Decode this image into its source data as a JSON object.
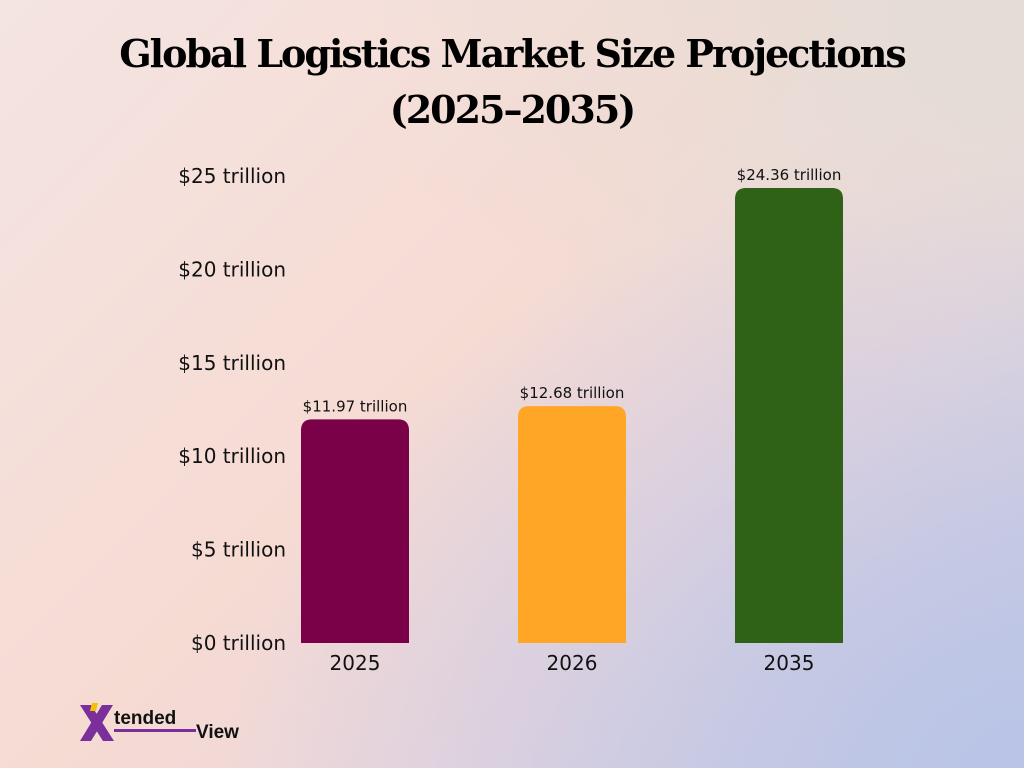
{
  "title_line1": "Global Logistics Market Size Projections",
  "title_line2": "(2025–2035)",
  "logo": {
    "letter": "X",
    "text_part1": "tended",
    "text_part2": "View",
    "mark_colors": [
      "#7a2f9a",
      "#f2c200"
    ]
  },
  "chart_data": {
    "type": "bar",
    "title": "Global Logistics Market Size Projections (2025–2035)",
    "categories": [
      "2025",
      "2026",
      "2035"
    ],
    "values": [
      11.97,
      12.68,
      24.36
    ],
    "data_labels": [
      "$11.97 trillion",
      "$12.68 trillion",
      "$24.36 trillion"
    ],
    "bar_colors": [
      "#7a0048",
      "#ffa626",
      "#2f6216"
    ],
    "ylim": [
      0,
      25
    ],
    "yticks": [
      0,
      5,
      10,
      15,
      20,
      25
    ],
    "ytick_labels": [
      "$0 trillion",
      "$5 trillion",
      "$10 trillion",
      "$15 trillion",
      "$20 trillion",
      "$25 trillion"
    ],
    "xlabel": "",
    "ylabel": "",
    "grid": false,
    "legend": "none"
  }
}
